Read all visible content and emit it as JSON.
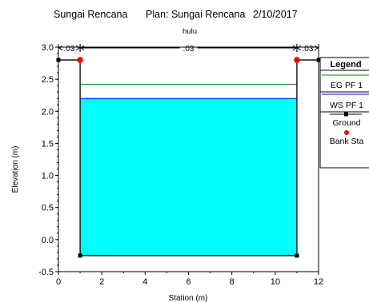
{
  "header": {
    "river": "Sungai Rencana",
    "plan": "Plan: Sungai Rencana",
    "date": "2/10/2017",
    "reach": "hulu"
  },
  "chart_data": {
    "type": "line",
    "title": "Sungai Rencana     Plan: Sungai Rencana     2/10/2017",
    "subtitle": "hulu",
    "xlabel": "Station (m)",
    "ylabel": "Elevation (m)",
    "xlim": [
      0,
      12
    ],
    "ylim": [
      -0.5,
      3.0
    ],
    "x_ticks": [
      0,
      2,
      4,
      6,
      8,
      10,
      12
    ],
    "x_tick_labels": [
      "0",
      "2",
      "4",
      "6",
      "8",
      "10",
      "12"
    ],
    "y_ticks": [
      -0.5,
      0.0,
      0.5,
      1.0,
      1.5,
      2.0,
      2.5,
      3.0
    ],
    "y_tick_labels": [
      "-0.5",
      "0.0",
      "0.5",
      "1.0",
      "1.5",
      "2.0",
      "2.5",
      "3.0"
    ],
    "grid": false,
    "legend_position": "top-right",
    "mannings_n": [
      {
        "label": ".03",
        "x_from": 0,
        "x_to": 1
      },
      {
        "label": ".03",
        "x_from": 1,
        "x_to": 11
      },
      {
        "label": ".03",
        "x_from": 11,
        "x_to": 12
      }
    ],
    "series": [
      {
        "name": "EG PF 1",
        "color": "#008000",
        "values_x": [
          1,
          11
        ],
        "values_y": [
          2.42,
          2.42
        ]
      },
      {
        "name": "WS PF 1",
        "color": "#0000ff",
        "values_x": [
          1,
          11
        ],
        "values_y": [
          2.2,
          2.2
        ]
      },
      {
        "name": "Ground",
        "color": "#000000",
        "values_x": [
          0,
          1,
          1,
          11,
          11,
          12
        ],
        "values_y": [
          2.8,
          2.8,
          -0.25,
          -0.25,
          2.8,
          2.8
        ]
      },
      {
        "name": "Bank Sta",
        "color": "#ff0000",
        "values_x": [
          1,
          11
        ],
        "values_y": [
          2.8,
          2.8
        ]
      }
    ],
    "water_fill": {
      "color": "#00ffff",
      "elevation": 2.2,
      "x_from": 1,
      "x_to": 11,
      "bottom": -0.25
    },
    "legend": {
      "title": "Legend",
      "entries": [
        "EG PF 1",
        "WS PF 1",
        "Ground",
        "Bank Sta"
      ]
    }
  }
}
